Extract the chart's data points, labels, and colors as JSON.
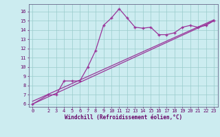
{
  "xlabel": "Windchill (Refroidissement éolien,°C)",
  "bg_color": "#ccecf0",
  "grid_color": "#99cccc",
  "line_color": "#993399",
  "xlim": [
    -0.5,
    23.5
  ],
  "ylim": [
    5.7,
    16.8
  ],
  "yticks": [
    6,
    7,
    8,
    9,
    10,
    11,
    12,
    13,
    14,
    15,
    16
  ],
  "xticks": [
    0,
    2,
    3,
    4,
    5,
    6,
    7,
    8,
    9,
    10,
    11,
    12,
    13,
    14,
    15,
    16,
    17,
    18,
    19,
    20,
    21,
    22,
    23
  ],
  "jagged_x": [
    0,
    2,
    3,
    4,
    5,
    6,
    7,
    8,
    9,
    10,
    11,
    12,
    13,
    14,
    15,
    16,
    17,
    18,
    19,
    20,
    21,
    22,
    23
  ],
  "jagged_y": [
    6.0,
    7.0,
    7.0,
    8.5,
    8.5,
    8.5,
    10.0,
    11.8,
    14.5,
    15.3,
    16.3,
    15.3,
    14.3,
    14.2,
    14.3,
    13.5,
    13.5,
    13.7,
    14.3,
    14.5,
    14.3,
    14.5,
    15.0
  ],
  "line1_x": [
    0,
    23
  ],
  "line1_y": [
    6.0,
    15.0
  ],
  "line2_x": [
    0,
    23
  ],
  "line2_y": [
    6.3,
    15.1
  ],
  "tick_fontsize": 5.0,
  "xlabel_fontsize": 5.5
}
